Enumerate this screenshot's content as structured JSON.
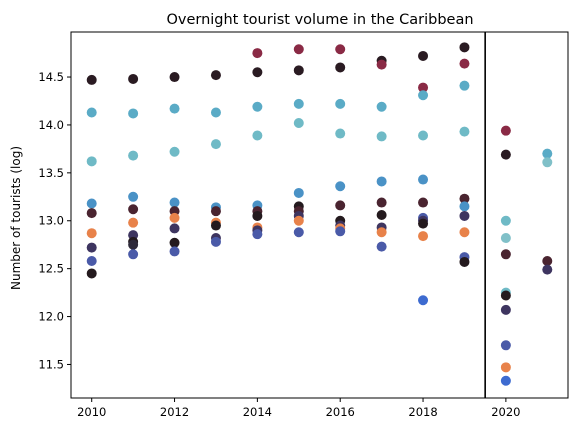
{
  "chart_data": {
    "type": "scatter",
    "title": "Overnight tourist volume in the Caribbean",
    "xlabel": "",
    "ylabel": "Number of tourists (log)",
    "xlim": [
      2009.5,
      2021.5
    ],
    "ylim": [
      11.15,
      14.97
    ],
    "xticks": [
      2010,
      2012,
      2014,
      2016,
      2018,
      2020
    ],
    "yticks": [
      11.5,
      12.0,
      12.5,
      13.0,
      13.5,
      14.0,
      14.5
    ],
    "vline": 2019.5,
    "grid": false,
    "legend": "none",
    "points": [
      {
        "x": 2010,
        "y": 14.47,
        "color": "#2a1b22"
      },
      {
        "x": 2010,
        "y": 14.13,
        "color": "#5aabc6"
      },
      {
        "x": 2010,
        "y": 13.62,
        "color": "#6fbac6"
      },
      {
        "x": 2010,
        "y": 13.18,
        "color": "#4a92c6"
      },
      {
        "x": 2010,
        "y": 13.08,
        "color": "#4a2430"
      },
      {
        "x": 2010,
        "y": 12.87,
        "color": "#e8824a"
      },
      {
        "x": 2010,
        "y": 12.72,
        "color": "#3e3560"
      },
      {
        "x": 2010,
        "y": 12.58,
        "color": "#4a5aa8"
      },
      {
        "x": 2010,
        "y": 12.45,
        "color": "#241a1e"
      },
      {
        "x": 2011,
        "y": 14.48,
        "color": "#2a1b22"
      },
      {
        "x": 2011,
        "y": 14.12,
        "color": "#5aabc6"
      },
      {
        "x": 2011,
        "y": 13.68,
        "color": "#6fbac6"
      },
      {
        "x": 2011,
        "y": 13.25,
        "color": "#4a92c6"
      },
      {
        "x": 2011,
        "y": 13.12,
        "color": "#4a2430"
      },
      {
        "x": 2011,
        "y": 12.98,
        "color": "#e8824a"
      },
      {
        "x": 2011,
        "y": 12.85,
        "color": "#3e3560"
      },
      {
        "x": 2011,
        "y": 12.78,
        "color": "#241a1e"
      },
      {
        "x": 2011,
        "y": 12.75,
        "color": "#2e2a3a"
      },
      {
        "x": 2011,
        "y": 12.65,
        "color": "#4a5aa8"
      },
      {
        "x": 2012,
        "y": 14.5,
        "color": "#2a1b22"
      },
      {
        "x": 2012,
        "y": 14.17,
        "color": "#5aabc6"
      },
      {
        "x": 2012,
        "y": 13.72,
        "color": "#6fbac6"
      },
      {
        "x": 2012,
        "y": 13.19,
        "color": "#4a92c6"
      },
      {
        "x": 2012,
        "y": 13.1,
        "color": "#4a2430"
      },
      {
        "x": 2012,
        "y": 13.03,
        "color": "#e8824a"
      },
      {
        "x": 2012,
        "y": 12.92,
        "color": "#3e3560"
      },
      {
        "x": 2012,
        "y": 12.77,
        "color": "#241a1e"
      },
      {
        "x": 2012,
        "y": 12.68,
        "color": "#4a5aa8"
      },
      {
        "x": 2013,
        "y": 14.52,
        "color": "#2a1b22"
      },
      {
        "x": 2013,
        "y": 14.13,
        "color": "#5aabc6"
      },
      {
        "x": 2013,
        "y": 13.8,
        "color": "#6fbac6"
      },
      {
        "x": 2013,
        "y": 13.14,
        "color": "#4a92c6"
      },
      {
        "x": 2013,
        "y": 13.1,
        "color": "#4a2430"
      },
      {
        "x": 2013,
        "y": 12.98,
        "color": "#e8824a"
      },
      {
        "x": 2013,
        "y": 12.95,
        "color": "#241a1e"
      },
      {
        "x": 2013,
        "y": 12.82,
        "color": "#3e3560"
      },
      {
        "x": 2013,
        "y": 12.78,
        "color": "#4a5aa8"
      },
      {
        "x": 2014,
        "y": 14.75,
        "color": "#8a2a45"
      },
      {
        "x": 2014,
        "y": 14.55,
        "color": "#2a1b22"
      },
      {
        "x": 2014,
        "y": 14.19,
        "color": "#5aabc6"
      },
      {
        "x": 2014,
        "y": 13.89,
        "color": "#6fbac6"
      },
      {
        "x": 2014,
        "y": 13.16,
        "color": "#4a92c6"
      },
      {
        "x": 2014,
        "y": 13.1,
        "color": "#4a2430"
      },
      {
        "x": 2014,
        "y": 13.05,
        "color": "#241a1e"
      },
      {
        "x": 2014,
        "y": 12.93,
        "color": "#e8824a"
      },
      {
        "x": 2014,
        "y": 12.9,
        "color": "#3e3560"
      },
      {
        "x": 2014,
        "y": 12.86,
        "color": "#4a5aa8"
      },
      {
        "x": 2015,
        "y": 14.79,
        "color": "#8a2a45"
      },
      {
        "x": 2015,
        "y": 14.57,
        "color": "#2a1b22"
      },
      {
        "x": 2015,
        "y": 14.22,
        "color": "#5aabc6"
      },
      {
        "x": 2015,
        "y": 14.02,
        "color": "#6fbac6"
      },
      {
        "x": 2015,
        "y": 13.29,
        "color": "#4a92c6"
      },
      {
        "x": 2015,
        "y": 13.15,
        "color": "#241a1e"
      },
      {
        "x": 2015,
        "y": 13.1,
        "color": "#4a2430"
      },
      {
        "x": 2015,
        "y": 13.05,
        "color": "#3e3560"
      },
      {
        "x": 2015,
        "y": 13.0,
        "color": "#e8824a"
      },
      {
        "x": 2015,
        "y": 12.88,
        "color": "#4a5aa8"
      },
      {
        "x": 2016,
        "y": 14.79,
        "color": "#8a2a45"
      },
      {
        "x": 2016,
        "y": 14.6,
        "color": "#2a1b22"
      },
      {
        "x": 2016,
        "y": 14.22,
        "color": "#5aabc6"
      },
      {
        "x": 2016,
        "y": 13.91,
        "color": "#6fbac6"
      },
      {
        "x": 2016,
        "y": 13.36,
        "color": "#4a92c6"
      },
      {
        "x": 2016,
        "y": 13.16,
        "color": "#4a2430"
      },
      {
        "x": 2016,
        "y": 13.0,
        "color": "#241a1e"
      },
      {
        "x": 2016,
        "y": 12.95,
        "color": "#3e3560"
      },
      {
        "x": 2016,
        "y": 12.92,
        "color": "#e8824a"
      },
      {
        "x": 2016,
        "y": 12.89,
        "color": "#4a5aa8"
      },
      {
        "x": 2017,
        "y": 14.67,
        "color": "#2a1b22"
      },
      {
        "x": 2017,
        "y": 14.63,
        "color": "#8a2a45"
      },
      {
        "x": 2017,
        "y": 14.19,
        "color": "#5aabc6"
      },
      {
        "x": 2017,
        "y": 13.88,
        "color": "#6fbac6"
      },
      {
        "x": 2017,
        "y": 13.41,
        "color": "#4a92c6"
      },
      {
        "x": 2017,
        "y": 13.19,
        "color": "#4a2430"
      },
      {
        "x": 2017,
        "y": 13.06,
        "color": "#241a1e"
      },
      {
        "x": 2017,
        "y": 12.93,
        "color": "#3e3560"
      },
      {
        "x": 2017,
        "y": 12.88,
        "color": "#e8824a"
      },
      {
        "x": 2017,
        "y": 12.73,
        "color": "#4a5aa8"
      },
      {
        "x": 2018,
        "y": 14.72,
        "color": "#2a1b22"
      },
      {
        "x": 2018,
        "y": 14.39,
        "color": "#8a2a45"
      },
      {
        "x": 2018,
        "y": 14.31,
        "color": "#5aabc6"
      },
      {
        "x": 2018,
        "y": 13.89,
        "color": "#6fbac6"
      },
      {
        "x": 2018,
        "y": 13.43,
        "color": "#4a92c6"
      },
      {
        "x": 2018,
        "y": 13.19,
        "color": "#4a2430"
      },
      {
        "x": 2018,
        "y": 13.03,
        "color": "#4a5aa8"
      },
      {
        "x": 2018,
        "y": 13.0,
        "color": "#3e3560"
      },
      {
        "x": 2018,
        "y": 12.97,
        "color": "#241a1e"
      },
      {
        "x": 2018,
        "y": 12.84,
        "color": "#e8824a"
      },
      {
        "x": 2018,
        "y": 12.17,
        "color": "#3d6bd0"
      },
      {
        "x": 2019,
        "y": 14.81,
        "color": "#2a1b22"
      },
      {
        "x": 2019,
        "y": 14.64,
        "color": "#8a2a45"
      },
      {
        "x": 2019,
        "y": 14.41,
        "color": "#5aabc6"
      },
      {
        "x": 2019,
        "y": 13.93,
        "color": "#6fbac6"
      },
      {
        "x": 2019,
        "y": 13.23,
        "color": "#4a2430"
      },
      {
        "x": 2019,
        "y": 13.15,
        "color": "#4a92c6"
      },
      {
        "x": 2019,
        "y": 13.05,
        "color": "#3e3560"
      },
      {
        "x": 2019,
        "y": 12.88,
        "color": "#e8824a"
      },
      {
        "x": 2019,
        "y": 12.62,
        "color": "#4a5aa8"
      },
      {
        "x": 2019,
        "y": 12.57,
        "color": "#241a1e"
      },
      {
        "x": 2020,
        "y": 13.94,
        "color": "#8a2a45"
      },
      {
        "x": 2020,
        "y": 13.69,
        "color": "#2a1b22"
      },
      {
        "x": 2020,
        "y": 13.0,
        "color": "#6fbac6"
      },
      {
        "x": 2020,
        "y": 12.82,
        "color": "#80c0c8"
      },
      {
        "x": 2020,
        "y": 12.65,
        "color": "#4a2430"
      },
      {
        "x": 2020,
        "y": 12.25,
        "color": "#6fbac6"
      },
      {
        "x": 2020,
        "y": 12.22,
        "color": "#241a1e"
      },
      {
        "x": 2020,
        "y": 12.07,
        "color": "#3e3560"
      },
      {
        "x": 2020,
        "y": 11.7,
        "color": "#4a5aa8"
      },
      {
        "x": 2020,
        "y": 11.47,
        "color": "#e8824a"
      },
      {
        "x": 2020,
        "y": 11.33,
        "color": "#3d6bd0"
      },
      {
        "x": 2021,
        "y": 13.7,
        "color": "#5aabc6"
      },
      {
        "x": 2021,
        "y": 13.61,
        "color": "#80c0c8"
      },
      {
        "x": 2021,
        "y": 12.58,
        "color": "#4a2430"
      },
      {
        "x": 2021,
        "y": 12.49,
        "color": "#3e3560"
      }
    ]
  }
}
